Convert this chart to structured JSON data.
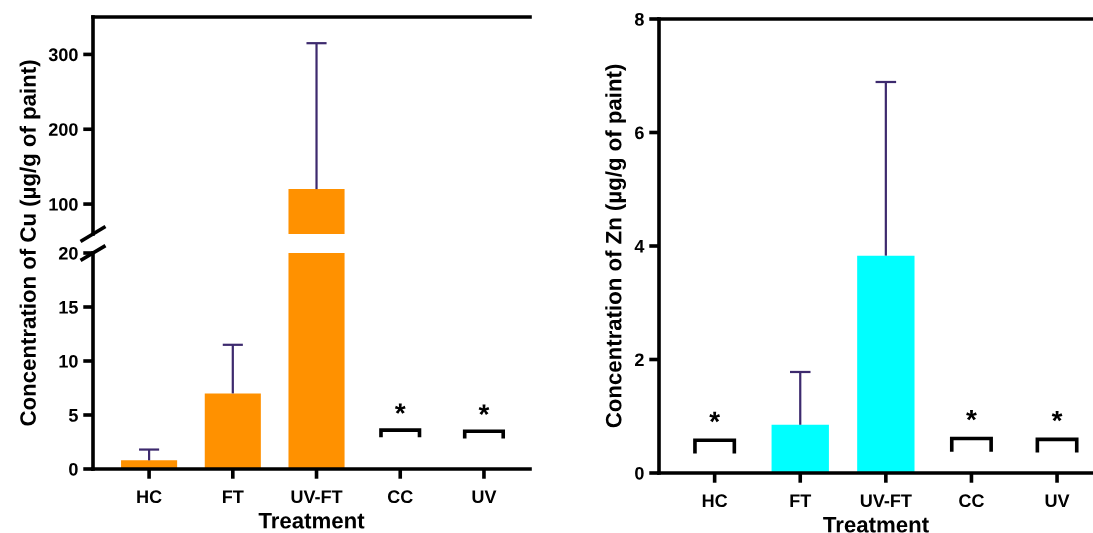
{
  "chart_data": [
    {
      "type": "bar",
      "categories": [
        null,
        null,
        null,
        null,
        null
      ],
      "series": [
        {
          "color": "#ff9100",
          "values": [
            null,
            null,
            120,
            null,
            null
          ],
          "errors": [
            null,
            null,
            [
              120,
              315
            ],
            null,
            null
          ]
        }
      ],
      "ylim": [
        60,
        350
      ],
      "yticks": [
        100,
        200,
        300
      ],
      "tick_labels": "y"
    },
    {
      "type": "bar",
      "categories": [
        "HC",
        "FT",
        "UV-FT",
        "CC",
        "UV"
      ],
      "series": [
        {
          "color": "#ff9100",
          "values": [
            0.8,
            7,
            null,
            null,
            null
          ],
          "errors": [
            [
              0.8,
              1.8
            ],
            [
              7,
              11.5
            ],
            null,
            null,
            null
          ]
        }
      ],
      "ylim": [
        0,
        20
      ],
      "yticks": [
        0,
        5,
        10,
        15,
        20
      ],
      "xlabel": "Treatment",
      "ylabel": "Concentration of Cu (µg/g of paint)",
      "annotations": [
        "*",
        "*"
      ]
    },
    {
      "type": "bar",
      "categories": [
        "HC",
        "FT",
        "UV-FT",
        "CC",
        "UV"
      ],
      "series": [
        {
          "color": "#00ffff",
          "values": [
            null,
            0.85,
            3.83,
            null,
            null
          ],
          "errors": [
            null,
            [
              0.85,
              1.78
            ],
            [
              3.83,
              6.89
            ],
            null,
            null
          ]
        }
      ],
      "ylim": [
        0,
        8
      ],
      "yticks": [
        0,
        2,
        4,
        6,
        8
      ],
      "xlabel": "Treatment",
      "ylabel": "Concentration of Zn (µg/g of paint)",
      "annotations": [
        "*",
        "*",
        "*"
      ]
    }
  ]
}
